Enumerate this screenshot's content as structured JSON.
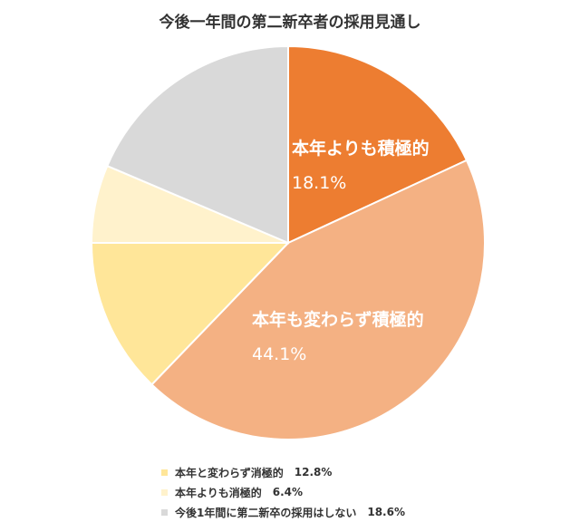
{
  "chart_data": {
    "type": "pie",
    "title": "今後一年間の第二新卒者の採用見通し",
    "slices": [
      {
        "label": "本年よりも積極的",
        "value": 18.1,
        "value_text": "18.1%",
        "color": "#ED7D31",
        "show_inside": true
      },
      {
        "label": "本年も変わらず積極的",
        "value": 44.1,
        "value_text": "44.1%",
        "color": "#F4B183",
        "show_inside": true
      },
      {
        "label": "本年と変わらず消極的",
        "value": 12.8,
        "value_text": "12.8%",
        "color": "#FFE699",
        "show_inside": false
      },
      {
        "label": "本年よりも消極的",
        "value": 6.4,
        "value_text": "6.4%",
        "color": "#FFF2CC",
        "show_inside": false
      },
      {
        "label": "今後1年間に第二新卒の採用はしない",
        "value": 18.6,
        "value_text": "18.6%",
        "color": "#D9D9D9",
        "show_inside": false
      }
    ],
    "start": "12 o'clock",
    "direction": "clockwise",
    "legend_position": "bottom"
  }
}
